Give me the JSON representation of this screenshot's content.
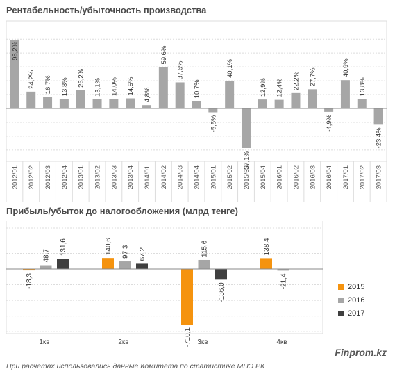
{
  "colors": {
    "grey": "#a6a6a6",
    "orange": "#f5930f",
    "dark": "#3f3f3f",
    "grid": "#dcdcdc",
    "axis": "#8a8a8a"
  },
  "footer": {
    "brand": "Finprom.kz",
    "note": "При расчетах использовались данные Комитета по статистике МНЭ РК"
  },
  "chart_data": [
    {
      "type": "bar",
      "title": "Рентабельность/убыточность  производства",
      "categories": [
        "2012/01",
        "2012/02",
        "2012/03",
        "2012/04",
        "2013/01",
        "2013/02",
        "2013/03",
        "2013/04",
        "2014/01",
        "2014/02",
        "2014/03",
        "2014/04",
        "2015/01",
        "2015/02",
        "2015/03",
        "2015/04",
        "2016/01",
        "2016/02",
        "2016/03",
        "2016/04",
        "2017/01",
        "2017/02",
        "2017/03"
      ],
      "values": [
        98.2,
        24.2,
        16.7,
        13.8,
        26.2,
        13.1,
        14.0,
        14.5,
        4.8,
        59.6,
        37.6,
        10.7,
        -5.5,
        40.1,
        -57.1,
        12.9,
        12.4,
        22.2,
        27.7,
        -4.9,
        40.9,
        13.8,
        -23.4
      ],
      "labels": [
        "98,2%",
        "24,2%",
        "16,7%",
        "13,8%",
        "26,2%",
        "13,1%",
        "14,0%",
        "14,5%",
        "4,8%",
        "59,6%",
        "37,6%",
        "10,7%",
        "-5,5%",
        "40,1%",
        "-57,1%",
        "12,9%",
        "12,4%",
        "22,2%",
        "27,7%",
        "-4,9%",
        "40,9%",
        "13,8%",
        "-23,4%"
      ],
      "ylim": [
        -60,
        100
      ],
      "grid": true
    },
    {
      "type": "bar",
      "title": "Прибыль/убыток  до налогообложения (млрд тенге)",
      "categories": [
        "1кв",
        "2кв",
        "3кв",
        "4кв"
      ],
      "series": [
        {
          "name": "2015",
          "color": "#f5930f",
          "values": [
            -18.3,
            140.6,
            -710.1,
            138.4
          ],
          "labels": [
            "-18,3",
            "140,6",
            "-710,1",
            "138,4"
          ]
        },
        {
          "name": "2016",
          "color": "#a6a6a6",
          "values": [
            48.7,
            97.3,
            115.6,
            -21.4
          ],
          "labels": [
            "48,7",
            "97,3",
            "115,6",
            "-21,4"
          ]
        },
        {
          "name": "2017",
          "color": "#3f3f3f",
          "values": [
            131.6,
            67.2,
            -136.0,
            null
          ],
          "labels": [
            "131,6",
            "67,2",
            "-136,0",
            ""
          ]
        }
      ],
      "legend": "right",
      "grid": true
    }
  ]
}
